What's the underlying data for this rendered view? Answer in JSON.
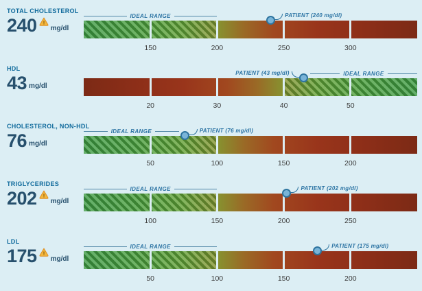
{
  "colors": {
    "background": "#dceef4",
    "metric_label": "#0f6a9c",
    "value_text": "#27506d",
    "annotation": "#2b73a3",
    "ideal_line": "#4f86a6",
    "tick_text": "#3d3d3d",
    "marker_fill": "#79b4d8",
    "marker_border": "#2e749f",
    "warning_fill": "#f2b63c",
    "warning_stroke": "#dd8a1f",
    "bar_green": "#3e9b45",
    "bar_red": "#7c2a15"
  },
  "chart_data": {
    "type": "bar",
    "rows": [
      {
        "metric": "TOTAL CHOLESTEROL",
        "value": "240",
        "unit": "mg/dl",
        "warning": true,
        "scale_min": 100,
        "scale_max": 350,
        "ticks": [
          "150",
          "200",
          "250",
          "300"
        ],
        "tick_values": [
          150,
          200,
          250,
          300
        ],
        "gradient": "green-to-red",
        "ideal_from": 100,
        "ideal_to": 200,
        "ideal_label": "IDEAL RANGE",
        "patient_value": 240,
        "patient_label": "PATIENT (240 mg/dl)",
        "patient_side": "right"
      },
      {
        "metric": "HDL",
        "value": "43",
        "unit": "mg/dl",
        "warning": false,
        "scale_min": 10,
        "scale_max": 60,
        "ticks": [
          "20",
          "30",
          "40",
          "50"
        ],
        "tick_values": [
          20,
          30,
          40,
          50
        ],
        "gradient": "red-to-green",
        "ideal_from": 40,
        "ideal_to": 60,
        "ideal_label": "IDEAL RANGE",
        "patient_value": 43,
        "patient_label": "PATIENT (43 mg/dl)",
        "patient_side": "left"
      },
      {
        "metric": "CHOLESTEROL, NON-HDL",
        "value": "76",
        "unit": "mg/dl",
        "warning": false,
        "scale_min": 0,
        "scale_max": 250,
        "ticks": [
          "50",
          "100",
          "150",
          "200"
        ],
        "tick_values": [
          50,
          100,
          150,
          200
        ],
        "gradient": "green-to-red",
        "ideal_from": 0,
        "ideal_to": 100,
        "ideal_label": "IDEAL RANGE",
        "patient_value": 76,
        "patient_label": "PATIENT (76 mg/dl)",
        "patient_side": "right"
      },
      {
        "metric": "TRIGLYCERIDES",
        "value": "202",
        "unit": "mg/dl",
        "warning": true,
        "scale_min": 50,
        "scale_max": 300,
        "ticks": [
          "100",
          "150",
          "200",
          "250"
        ],
        "tick_values": [
          100,
          150,
          200,
          250
        ],
        "gradient": "green-to-red",
        "ideal_from": 50,
        "ideal_to": 150,
        "ideal_label": "IDEAL RANGE",
        "patient_value": 202,
        "patient_label": "PATIENT (202 mg/dl)",
        "patient_side": "right"
      },
      {
        "metric": "LDL",
        "value": "175",
        "unit": "mg/dl",
        "warning": true,
        "scale_min": 0,
        "scale_max": 250,
        "ticks": [
          "50",
          "100",
          "150",
          "200"
        ],
        "tick_values": [
          50,
          100,
          150,
          200
        ],
        "gradient": "green-to-red",
        "ideal_from": 0,
        "ideal_to": 100,
        "ideal_label": "IDEAL RANGE",
        "patient_value": 175,
        "patient_label": "PATIENT (175 mg/dl)",
        "patient_side": "right"
      }
    ]
  }
}
